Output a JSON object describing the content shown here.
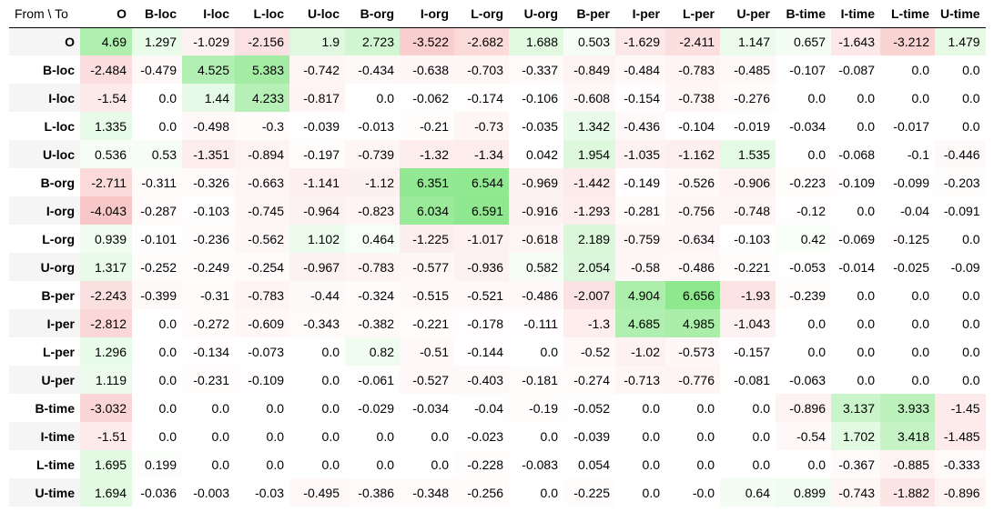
{
  "corner_label": "From \\ To",
  "chart_data": {
    "type": "heatmap",
    "columns": [
      "O",
      "B-loc",
      "I-loc",
      "L-loc",
      "U-loc",
      "B-org",
      "I-org",
      "L-org",
      "U-org",
      "B-per",
      "I-per",
      "L-per",
      "U-per",
      "B-time",
      "I-time",
      "L-time",
      "U-time"
    ],
    "rows": [
      {
        "label": "O",
        "values": [
          "4.69",
          "1.297",
          "-1.029",
          "-2.156",
          "1.9",
          "2.723",
          "-3.522",
          "-2.682",
          "1.688",
          "0.503",
          "-1.629",
          "-2.411",
          "1.147",
          "0.657",
          "-1.643",
          "-3.212",
          "1.479"
        ]
      },
      {
        "label": "B-loc",
        "values": [
          "-2.484",
          "-0.479",
          "4.525",
          "5.383",
          "-0.742",
          "-0.434",
          "-0.638",
          "-0.703",
          "-0.337",
          "-0.849",
          "-0.484",
          "-0.783",
          "-0.485",
          "-0.107",
          "-0.087",
          "0.0",
          "0.0"
        ]
      },
      {
        "label": "I-loc",
        "values": [
          "-1.54",
          "0.0",
          "1.44",
          "4.233",
          "-0.817",
          "0.0",
          "-0.062",
          "-0.174",
          "-0.106",
          "-0.608",
          "-0.154",
          "-0.738",
          "-0.276",
          "0.0",
          "0.0",
          "0.0",
          "0.0"
        ]
      },
      {
        "label": "L-loc",
        "values": [
          "1.335",
          "0.0",
          "-0.498",
          "-0.3",
          "-0.039",
          "-0.013",
          "-0.21",
          "-0.73",
          "-0.035",
          "1.342",
          "-0.436",
          "-0.104",
          "-0.019",
          "-0.034",
          "0.0",
          "-0.017",
          "0.0"
        ]
      },
      {
        "label": "U-loc",
        "values": [
          "0.536",
          "0.53",
          "-1.351",
          "-0.894",
          "-0.197",
          "-0.739",
          "-1.32",
          "-1.34",
          "0.042",
          "1.954",
          "-1.035",
          "-1.162",
          "1.535",
          "0.0",
          "-0.068",
          "-0.1",
          "-0.446"
        ]
      },
      {
        "label": "B-org",
        "values": [
          "-2.711",
          "-0.311",
          "-0.326",
          "-0.663",
          "-1.141",
          "-1.12",
          "6.351",
          "6.544",
          "-0.969",
          "-1.442",
          "-0.149",
          "-0.526",
          "-0.906",
          "-0.223",
          "-0.109",
          "-0.099",
          "-0.203"
        ]
      },
      {
        "label": "I-org",
        "values": [
          "-4.043",
          "-0.287",
          "-0.103",
          "-0.745",
          "-0.964",
          "-0.823",
          "6.034",
          "6.591",
          "-0.916",
          "-1.293",
          "-0.281",
          "-0.756",
          "-0.748",
          "-0.12",
          "0.0",
          "-0.04",
          "-0.091"
        ]
      },
      {
        "label": "L-org",
        "values": [
          "0.939",
          "-0.101",
          "-0.236",
          "-0.562",
          "1.102",
          "0.464",
          "-1.225",
          "-1.017",
          "-0.618",
          "2.189",
          "-0.759",
          "-0.634",
          "-0.103",
          "0.42",
          "-0.069",
          "-0.125",
          "0.0"
        ]
      },
      {
        "label": "U-org",
        "values": [
          "1.317",
          "-0.252",
          "-0.249",
          "-0.254",
          "-0.967",
          "-0.783",
          "-0.577",
          "-0.936",
          "0.582",
          "2.054",
          "-0.58",
          "-0.486",
          "-0.221",
          "-0.053",
          "-0.014",
          "-0.025",
          "-0.09"
        ]
      },
      {
        "label": "B-per",
        "values": [
          "-2.243",
          "-0.399",
          "-0.31",
          "-0.783",
          "-0.44",
          "-0.324",
          "-0.515",
          "-0.521",
          "-0.486",
          "-2.007",
          "4.904",
          "6.656",
          "-1.93",
          "-0.239",
          "0.0",
          "0.0",
          "0.0"
        ]
      },
      {
        "label": "I-per",
        "values": [
          "-2.812",
          "0.0",
          "-0.272",
          "-0.609",
          "-0.343",
          "-0.382",
          "-0.221",
          "-0.178",
          "-0.111",
          "-1.3",
          "4.685",
          "4.985",
          "-1.043",
          "0.0",
          "0.0",
          "0.0",
          "0.0"
        ]
      },
      {
        "label": "L-per",
        "values": [
          "1.296",
          "0.0",
          "-0.134",
          "-0.073",
          "0.0",
          "0.82",
          "-0.51",
          "-0.144",
          "0.0",
          "-0.52",
          "-1.02",
          "-0.573",
          "-0.157",
          "0.0",
          "0.0",
          "0.0",
          "0.0"
        ]
      },
      {
        "label": "U-per",
        "values": [
          "1.119",
          "0.0",
          "-0.231",
          "-0.109",
          "0.0",
          "-0.061",
          "-0.527",
          "-0.403",
          "-0.181",
          "-0.274",
          "-0.713",
          "-0.776",
          "-0.081",
          "-0.063",
          "0.0",
          "0.0",
          "0.0"
        ]
      },
      {
        "label": "B-time",
        "values": [
          "-3.032",
          "0.0",
          "0.0",
          "0.0",
          "0.0",
          "-0.029",
          "-0.034",
          "-0.04",
          "-0.19",
          "-0.052",
          "0.0",
          "0.0",
          "0.0",
          "-0.896",
          "3.137",
          "3.933",
          "-1.45"
        ]
      },
      {
        "label": "I-time",
        "values": [
          "-1.51",
          "0.0",
          "0.0",
          "0.0",
          "0.0",
          "0.0",
          "0.0",
          "-0.023",
          "0.0",
          "-0.039",
          "0.0",
          "0.0",
          "0.0",
          "-0.54",
          "1.702",
          "3.418",
          "-1.485"
        ]
      },
      {
        "label": "L-time",
        "values": [
          "1.695",
          "0.199",
          "0.0",
          "0.0",
          "0.0",
          "0.0",
          "0.0",
          "-0.228",
          "-0.083",
          "0.054",
          "0.0",
          "0.0",
          "0.0",
          "0.0",
          "-0.367",
          "-0.885",
          "-0.333"
        ]
      },
      {
        "label": "U-time",
        "values": [
          "1.694",
          "-0.036",
          "-0.003",
          "-0.03",
          "-0.495",
          "-0.386",
          "-0.348",
          "-0.256",
          "0.0",
          "-0.225",
          "0.0",
          "-0.0",
          "0.64",
          "0.899",
          "-0.743",
          "-1.882",
          "-0.896"
        ]
      }
    ],
    "colors": {
      "positive": "#8ee88e",
      "negative": "#f4a3a3",
      "neutral": "#ffffff"
    }
  }
}
